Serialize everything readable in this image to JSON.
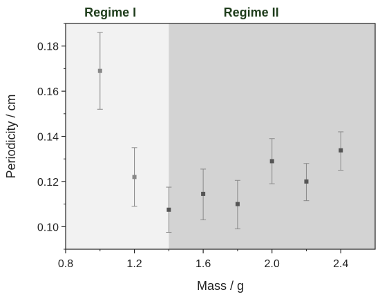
{
  "chart_data": {
    "type": "scatter",
    "title": "",
    "xlabel": "Mass / g",
    "ylabel": "Periodicity / cm",
    "xlim": [
      0.8,
      2.6
    ],
    "ylim": [
      0.09,
      0.19
    ],
    "xticks": [
      0.8,
      1.2,
      1.6,
      2.0,
      2.4
    ],
    "xtick_labels": [
      "0.8",
      "1.2",
      "1.6",
      "2.0",
      "2.4"
    ],
    "yticks": [
      0.1,
      0.12,
      0.14,
      0.16,
      0.18
    ],
    "ytick_labels": [
      "0.10",
      "0.12",
      "0.14",
      "0.16",
      "0.18"
    ],
    "grid": false,
    "regions": [
      {
        "label": "Regime I",
        "x_range": [
          0.8,
          1.4
        ],
        "color": "#f2f2f2"
      },
      {
        "label": "Regime II",
        "x_range": [
          1.4,
          2.6
        ],
        "color": "#d3d3d3"
      }
    ],
    "points": [
      {
        "x": 1.0,
        "y": 0.169,
        "err_low": 0.152,
        "err_high": 0.186,
        "color": "#888888"
      },
      {
        "x": 1.2,
        "y": 0.122,
        "err_low": 0.109,
        "err_high": 0.135,
        "color": "#888888"
      },
      {
        "x": 1.4,
        "y": 0.1075,
        "err_low": 0.0975,
        "err_high": 0.1175,
        "color": "#555555"
      },
      {
        "x": 1.6,
        "y": 0.1145,
        "err_low": 0.103,
        "err_high": 0.1255,
        "color": "#555555"
      },
      {
        "x": 1.8,
        "y": 0.11,
        "err_low": 0.099,
        "err_high": 0.1205,
        "color": "#555555"
      },
      {
        "x": 2.0,
        "y": 0.129,
        "err_low": 0.119,
        "err_high": 0.139,
        "color": "#555555"
      },
      {
        "x": 2.2,
        "y": 0.12,
        "err_low": 0.1115,
        "err_high": 0.128,
        "color": "#555555"
      },
      {
        "x": 2.4,
        "y": 0.1338,
        "err_low": 0.125,
        "err_high": 0.142,
        "color": "#555555"
      }
    ]
  }
}
